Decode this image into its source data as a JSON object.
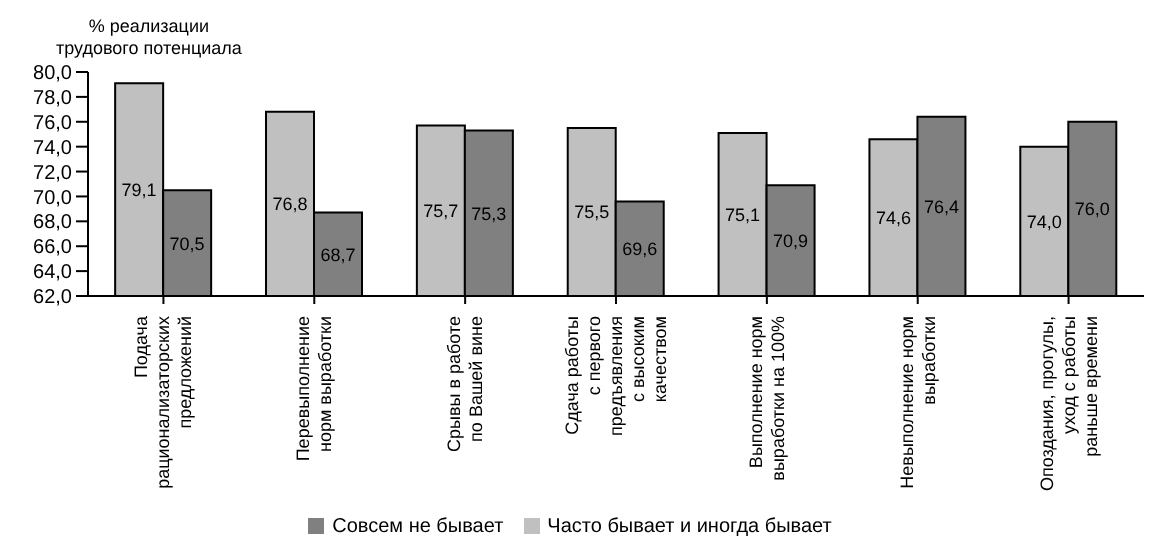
{
  "chart_data": {
    "type": "bar",
    "ylabel": "% реализации\nтрудового потенциала",
    "categories": [
      "Подача\nрационализаторских\nпредложений",
      "Перевыполнение\nнорм выработки",
      "Срывы в работе\nпо Вашей вине",
      "Сдача работы\nс первого\nпредъявления\nс высоким\nкачеством",
      "Выполнение норм\nвыработки на 100%",
      "Невыполнение норм\nвыработки",
      "Опоздания, прогулы,\nуход с работы\nраньше времени"
    ],
    "series": [
      {
        "name": "Часто бывает и иногда бывает",
        "color": "#c0c0c0",
        "values": [
          79.1,
          76.8,
          75.7,
          75.5,
          75.1,
          74.6,
          74.0
        ],
        "value_labels": [
          "79,1",
          "76,8",
          "75,7",
          "75,5",
          "75,1",
          "74,6",
          "74,0"
        ]
      },
      {
        "name": "Совсем не бывает",
        "color": "#808080",
        "values": [
          70.5,
          68.7,
          75.3,
          69.6,
          70.9,
          76.4,
          76.0
        ],
        "value_labels": [
          "70,5",
          "68,7",
          "75,3",
          "69,6",
          "70,9",
          "76,4",
          "76,0"
        ]
      }
    ],
    "ylim": [
      62,
      80
    ],
    "yticks": [
      {
        "value": 62,
        "label": "62,0"
      },
      {
        "value": 64,
        "label": "64,0"
      },
      {
        "value": 66,
        "label": "66,0"
      },
      {
        "value": 68,
        "label": "68,0"
      },
      {
        "value": 70,
        "label": "70,0"
      },
      {
        "value": 72,
        "label": "72,0"
      },
      {
        "value": 74,
        "label": "74,0"
      },
      {
        "value": 76,
        "label": "76,0"
      },
      {
        "value": 78,
        "label": "78,0"
      },
      {
        "value": 80,
        "label": "80,0"
      }
    ],
    "grid": false,
    "legend": "bottom"
  }
}
